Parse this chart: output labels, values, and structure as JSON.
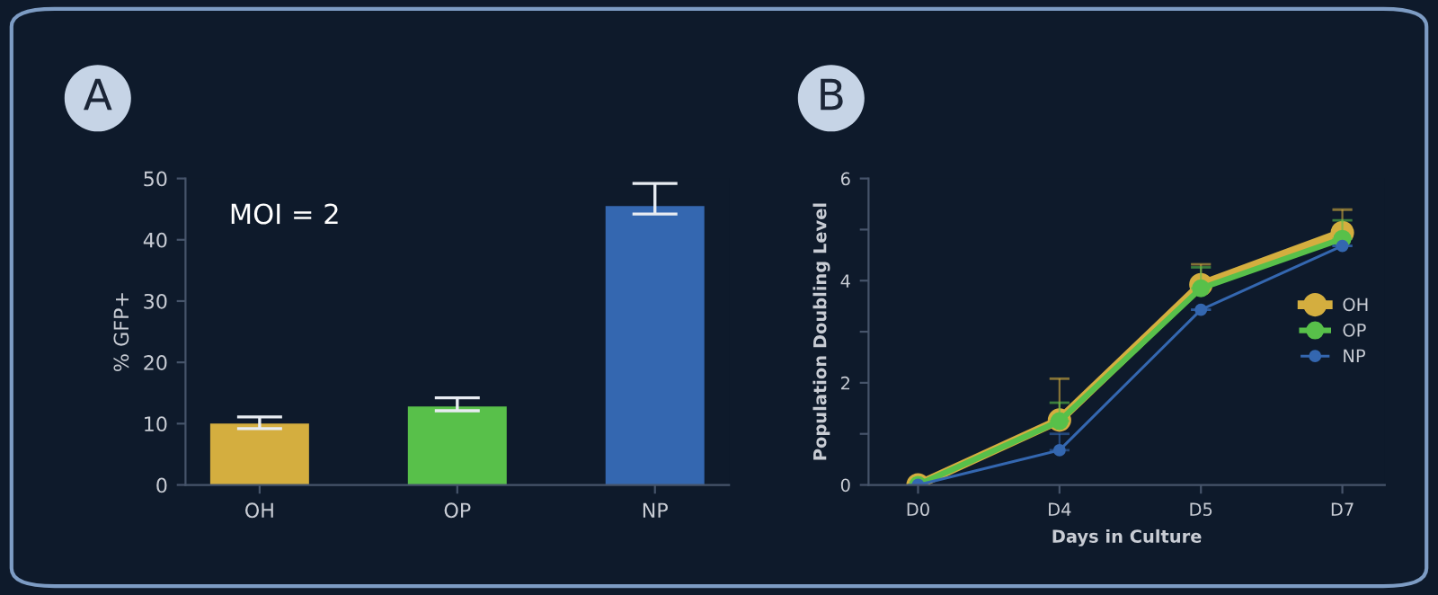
{
  "chart_data": [
    {
      "type": "bar",
      "title": "A",
      "ylabel": "% GFP+",
      "categories": [
        "OH",
        "OP",
        "NP"
      ],
      "values": [
        10,
        12.8,
        45.5
      ],
      "colors": [
        "#d4ae3f",
        "#58c04a",
        "#3467b0"
      ],
      "errors": [
        [
          9.2,
          11.1
        ],
        [
          12.1,
          14.2
        ],
        [
          44.2,
          49.2
        ]
      ],
      "ylim": [
        0,
        50
      ],
      "yticks": [
        0,
        10,
        20,
        30,
        40,
        50
      ],
      "grid": false,
      "annotations": [
        "MOI = 2"
      ]
    },
    {
      "type": "line",
      "title": "B",
      "xlabel": "Days in Culture",
      "ylabel": "Population Doubling Level",
      "categories": [
        "D0",
        "D4",
        "D5",
        "D7"
      ],
      "marker": "circle",
      "legend": "right",
      "grid": false,
      "ylim": [
        0,
        6
      ],
      "yticks": [
        0,
        {
          "value": 1,
          "label": null
        },
        2,
        {
          "value": 3,
          "label": null
        },
        4,
        {
          "value": 5,
          "label": null
        },
        6
      ],
      "series": [
        {
          "name": "OH",
          "color": "#d4ae3f",
          "values": [
            0,
            1.27,
            3.92,
            4.94
          ],
          "errors": [
            null,
            [
              1.27,
              2.08
            ],
            [
              3.92,
              4.32
            ],
            [
              4.94,
              5.39
            ]
          ]
        },
        {
          "name": "OP",
          "color": "#58c04a",
          "values": [
            0,
            1.25,
            3.85,
            4.82
          ],
          "errors": [
            null,
            [
              1.25,
              1.61
            ],
            [
              3.85,
              4.26
            ],
            [
              4.82,
              5.18
            ]
          ]
        },
        {
          "name": "NP",
          "color": "#3467b0",
          "values": [
            0,
            0.68,
            3.43,
            4.68
          ],
          "errors": [
            null,
            [
              0.68,
              1.0
            ],
            null,
            null
          ]
        }
      ]
    }
  ]
}
